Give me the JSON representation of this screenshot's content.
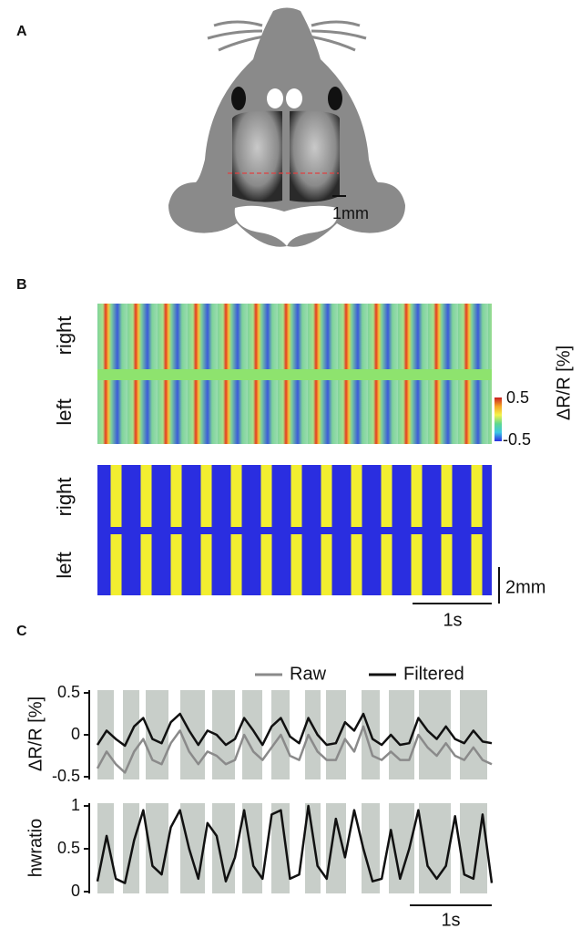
{
  "panels": {
    "a": "A",
    "b": "B",
    "c": "C"
  },
  "mouse": {
    "scale": "1mm"
  },
  "heatmaps": {
    "top_right": "right",
    "top_left": "left",
    "bottom_right": "right",
    "bottom_left": "left",
    "colorbar": {
      "ticks": [
        0.5,
        -0.5
      ],
      "label": "ΔR/R [%]"
    },
    "space_scale": "2mm",
    "time_scale": "1s"
  },
  "chart_data": [
    {
      "type": "line",
      "ylabel": "ΔR/R [%]",
      "ylim": [
        -0.5,
        0.5
      ],
      "yticks": [
        0.5,
        0,
        -0.5
      ],
      "legend": "top-right",
      "series": [
        {
          "name": "Raw",
          "color": "#8a8a8a",
          "values": [
            -0.4,
            -0.2,
            -0.35,
            -0.45,
            -0.2,
            -0.05,
            -0.3,
            -0.35,
            -0.1,
            0.05,
            -0.2,
            -0.35,
            -0.2,
            -0.25,
            -0.35,
            -0.3,
            0.0,
            -0.2,
            -0.3,
            -0.15,
            0.0,
            -0.25,
            -0.3,
            0.0,
            -0.2,
            -0.3,
            -0.3,
            -0.05,
            -0.2,
            0.1,
            -0.25,
            -0.3,
            -0.2,
            -0.3,
            -0.3,
            0.0,
            -0.15,
            -0.25,
            -0.1,
            -0.25,
            -0.3,
            -0.15,
            -0.3,
            -0.35
          ]
        },
        {
          "name": "Filtered",
          "color": "#111111",
          "values": [
            -0.12,
            0.05,
            -0.05,
            -0.13,
            0.1,
            0.2,
            -0.05,
            -0.1,
            0.15,
            0.25,
            0.05,
            -0.12,
            0.05,
            0.0,
            -0.12,
            -0.05,
            0.2,
            0.05,
            -0.12,
            0.1,
            0.2,
            -0.02,
            -0.1,
            0.2,
            0.0,
            -0.12,
            -0.1,
            0.15,
            0.05,
            0.25,
            -0.05,
            -0.12,
            0.0,
            -0.12,
            -0.1,
            0.2,
            0.05,
            -0.05,
            0.1,
            -0.05,
            -0.1,
            0.05,
            -0.08,
            -0.1
          ]
        }
      ]
    },
    {
      "type": "line",
      "ylabel": "hwratio",
      "ylim": [
        0,
        1
      ],
      "yticks": [
        1,
        0.5,
        0
      ],
      "time_scale": "1s",
      "series": [
        {
          "color": "#111111",
          "values": [
            0.12,
            0.65,
            0.15,
            0.1,
            0.6,
            0.95,
            0.3,
            0.2,
            0.75,
            0.95,
            0.5,
            0.15,
            0.8,
            0.65,
            0.12,
            0.4,
            0.95,
            0.3,
            0.15,
            0.9,
            0.95,
            0.15,
            0.2,
            1.0,
            0.3,
            0.15,
            0.85,
            0.4,
            0.95,
            0.5,
            0.12,
            0.15,
            0.72,
            0.15,
            0.5,
            0.95,
            0.3,
            0.15,
            0.3,
            0.88,
            0.2,
            0.15,
            0.9,
            0.1
          ]
        }
      ]
    }
  ]
}
